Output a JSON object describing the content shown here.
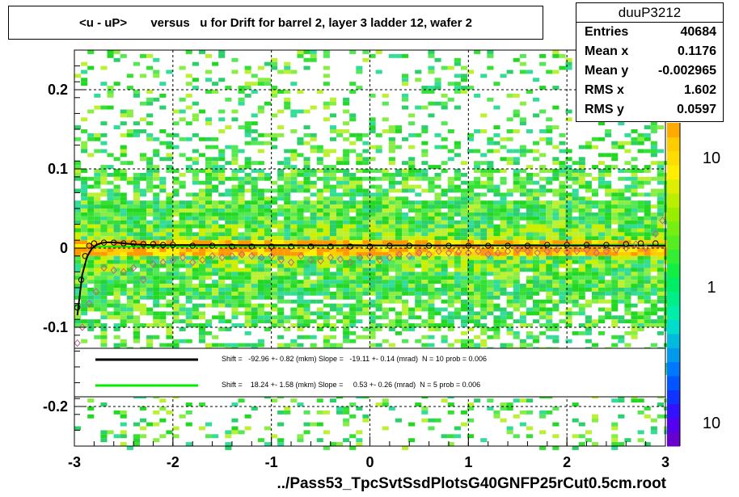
{
  "title": "<u - uP>       versus   u for Drift for barrel 2, layer 3 ladder 12, wafer 2",
  "stats": {
    "name": "duuP3212",
    "rows": [
      {
        "label": "Entries",
        "value": "40684"
      },
      {
        "label": "Mean x",
        "value": "0.1176"
      },
      {
        "label": "Mean y",
        "value": "-0.002965"
      },
      {
        "label": "RMS x",
        "value": "1.602"
      },
      {
        "label": "RMS y",
        "value": "0.0597"
      }
    ]
  },
  "legend": [
    {
      "color": "#000000",
      "text": "Shift =   -92.96 +- 0.82 (mkm) Slope =   -19.11 +- 0.14 (mrad)  N = 10 prob = 0.006"
    },
    {
      "color": "#00ee00",
      "text": "Shift =    18.24 +- 1.58 (mkm) Slope =     0.53 +- 0.26 (mrad)  N = 5 prob = 0.006"
    }
  ],
  "x_axis_title": "../Pass53_TpcSvtSsdPlotsG40GNFP25rCut0.5cm.root",
  "colors": {
    "fit_main": "#000000",
    "fit_alt": "#00ee00",
    "marker_open": "#000000",
    "marker_profile": "#c06090"
  },
  "chart_data": {
    "type": "heatmap",
    "xlim": [
      -3,
      3
    ],
    "ylim": [
      -0.25,
      0.25
    ],
    "x_ticks": [
      -3,
      -2,
      -1,
      0,
      1,
      2,
      3
    ],
    "x_tick_labels": [
      "-3",
      "-2",
      "-1",
      "0",
      "1",
      "2",
      "3"
    ],
    "y_ticks": [
      -0.2,
      -0.1,
      0,
      0.1,
      0.2
    ],
    "y_tick_labels": [
      "-0.2",
      "-0.1",
      "0",
      "0.1",
      "0.2"
    ],
    "grid": true,
    "z_scale": "log",
    "z_tick_labels": [
      "10",
      "1",
      "10"
    ],
    "profile_open": [
      {
        "x": -2.97,
        "y": -0.075
      },
      {
        "x": -2.93,
        "y": -0.04
      },
      {
        "x": -2.89,
        "y": -0.01
      },
      {
        "x": -2.85,
        "y": 0.003
      },
      {
        "x": -2.8,
        "y": 0.006
      },
      {
        "x": -2.7,
        "y": 0.007
      },
      {
        "x": -2.6,
        "y": 0.007
      },
      {
        "x": -2.5,
        "y": 0.006
      },
      {
        "x": -2.4,
        "y": 0.006
      },
      {
        "x": -2.3,
        "y": 0.005
      },
      {
        "x": -2.2,
        "y": 0.005
      },
      {
        "x": -2.1,
        "y": 0.004
      },
      {
        "x": -2.0,
        "y": 0.004
      },
      {
        "x": -1.8,
        "y": 0.003
      },
      {
        "x": -1.6,
        "y": 0.003
      },
      {
        "x": -1.4,
        "y": 0.002
      },
      {
        "x": -1.2,
        "y": 0.002
      },
      {
        "x": -1.0,
        "y": 0.002
      },
      {
        "x": -0.8,
        "y": 0.002
      },
      {
        "x": -0.6,
        "y": 0.002
      },
      {
        "x": -0.4,
        "y": 0.002
      },
      {
        "x": -0.2,
        "y": 0.002
      },
      {
        "x": 0.0,
        "y": 0.002
      },
      {
        "x": 0.2,
        "y": 0.003
      },
      {
        "x": 0.4,
        "y": 0.003
      },
      {
        "x": 0.6,
        "y": 0.003
      },
      {
        "x": 0.8,
        "y": 0.003
      },
      {
        "x": 1.0,
        "y": 0.003
      },
      {
        "x": 1.2,
        "y": 0.003
      },
      {
        "x": 1.4,
        "y": 0.003
      },
      {
        "x": 1.6,
        "y": 0.003
      },
      {
        "x": 1.8,
        "y": 0.004
      },
      {
        "x": 2.0,
        "y": 0.004
      },
      {
        "x": 2.2,
        "y": 0.004
      },
      {
        "x": 2.4,
        "y": 0.004
      },
      {
        "x": 2.6,
        "y": 0.005
      },
      {
        "x": 2.75,
        "y": 0.006
      },
      {
        "x": 2.9,
        "y": 0.006
      }
    ],
    "profile_pink": [
      {
        "x": -2.97,
        "y": -0.12
      },
      {
        "x": -2.92,
        "y": -0.1
      },
      {
        "x": -2.85,
        "y": -0.07
      },
      {
        "x": -2.78,
        "y": -0.055
      },
      {
        "x": -2.7,
        "y": -0.025
      },
      {
        "x": -2.6,
        "y": -0.028
      },
      {
        "x": -2.5,
        "y": -0.03
      },
      {
        "x": -2.4,
        "y": -0.025
      },
      {
        "x": -2.3,
        "y": -0.04
      },
      {
        "x": -2.2,
        "y": -0.02
      },
      {
        "x": -2.1,
        "y": -0.018
      },
      {
        "x": -2.0,
        "y": -0.015
      },
      {
        "x": -1.9,
        "y": -0.012
      },
      {
        "x": -1.8,
        "y": -0.018
      },
      {
        "x": -1.7,
        "y": -0.015
      },
      {
        "x": -1.6,
        "y": -0.01
      },
      {
        "x": -1.5,
        "y": -0.012
      },
      {
        "x": -1.4,
        "y": -0.01
      },
      {
        "x": -1.3,
        "y": -0.008
      },
      {
        "x": -1.2,
        "y": -0.01
      },
      {
        "x": -1.1,
        "y": -0.012
      },
      {
        "x": -1.0,
        "y": -0.01
      },
      {
        "x": -0.9,
        "y": -0.015
      },
      {
        "x": -0.8,
        "y": -0.018
      },
      {
        "x": -0.7,
        "y": -0.01
      },
      {
        "x": -0.6,
        "y": -0.015
      },
      {
        "x": -0.5,
        "y": -0.016
      },
      {
        "x": -0.4,
        "y": -0.012
      },
      {
        "x": -0.3,
        "y": -0.014
      },
      {
        "x": -0.2,
        "y": -0.018
      },
      {
        "x": -0.1,
        "y": -0.012
      },
      {
        "x": 0.0,
        "y": -0.01
      },
      {
        "x": 0.1,
        "y": -0.015
      },
      {
        "x": 0.2,
        "y": -0.012
      },
      {
        "x": 0.3,
        "y": -0.008
      },
      {
        "x": 0.4,
        "y": -0.01
      },
      {
        "x": 0.5,
        "y": -0.006
      },
      {
        "x": 0.6,
        "y": -0.008
      },
      {
        "x": 0.7,
        "y": -0.004
      },
      {
        "x": 0.8,
        "y": -0.006
      },
      {
        "x": 0.9,
        "y": -0.005
      },
      {
        "x": 1.0,
        "y": -0.006
      },
      {
        "x": 1.1,
        "y": -0.004
      },
      {
        "x": 1.2,
        "y": -0.008
      },
      {
        "x": 1.3,
        "y": -0.006
      },
      {
        "x": 1.4,
        "y": -0.004
      },
      {
        "x": 1.5,
        "y": -0.002
      },
      {
        "x": 1.6,
        "y": -0.004
      },
      {
        "x": 1.7,
        "y": -0.006
      },
      {
        "x": 1.8,
        "y": -0.004
      },
      {
        "x": 1.9,
        "y": -0.002
      },
      {
        "x": 2.0,
        "y": -0.005
      },
      {
        "x": 2.1,
        "y": -0.004
      },
      {
        "x": 2.2,
        "y": -0.002
      },
      {
        "x": 2.3,
        "y": -0.006
      },
      {
        "x": 2.4,
        "y": -0.004
      },
      {
        "x": 2.5,
        "y": -0.002
      },
      {
        "x": 2.6,
        "y": 0.0
      },
      {
        "x": 2.7,
        "y": 0.005
      },
      {
        "x": 2.8,
        "y": 0.0
      },
      {
        "x": 2.9,
        "y": 0.018
      },
      {
        "x": 2.97,
        "y": 0.035
      }
    ]
  }
}
